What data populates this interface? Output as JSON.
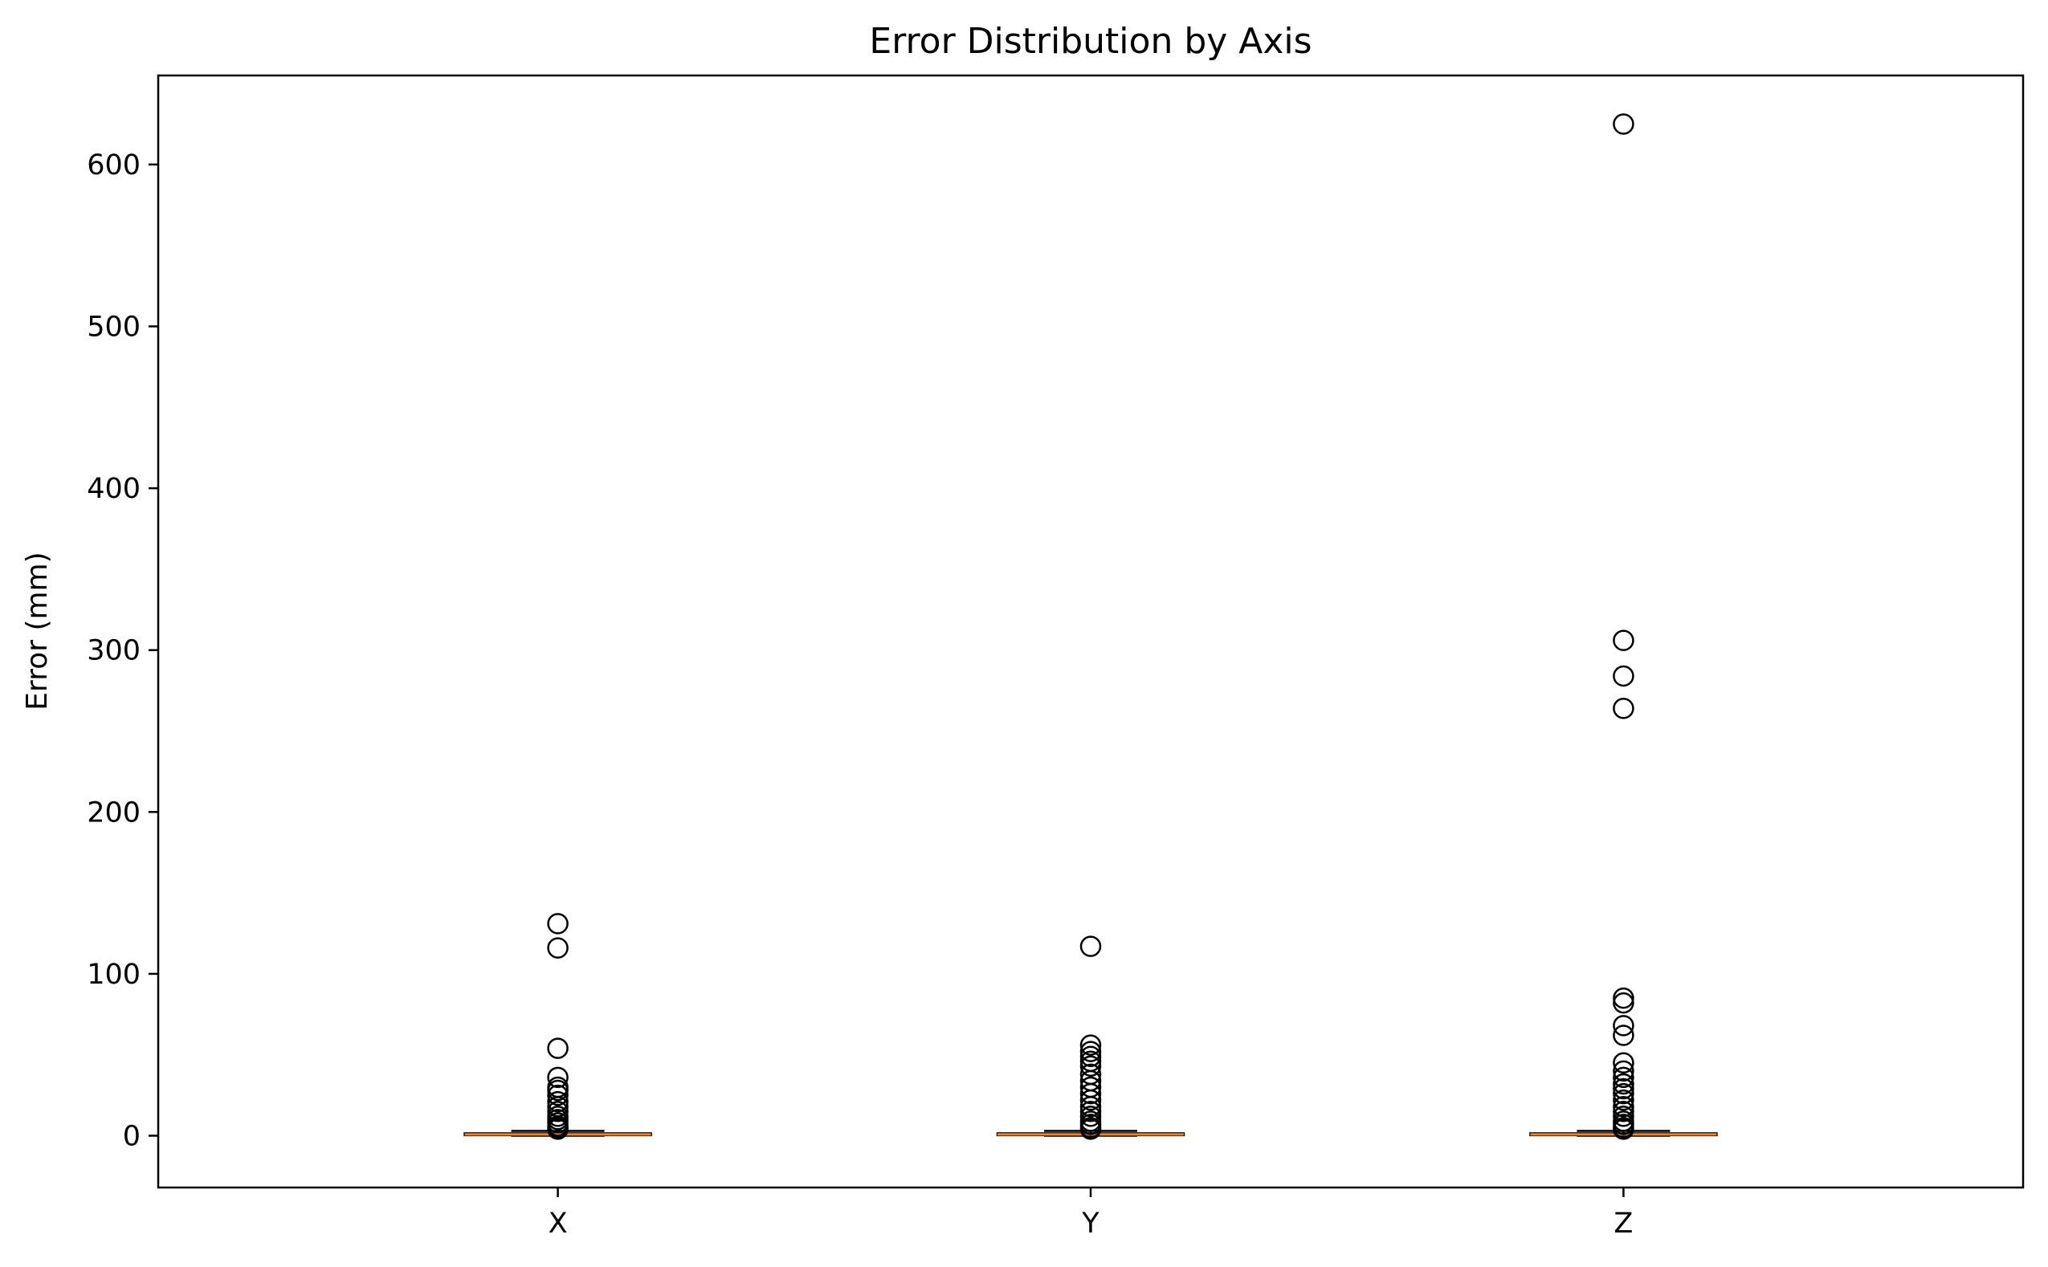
{
  "chart_data": {
    "type": "box",
    "title": "Error Distribution by Axis",
    "xlabel": "",
    "ylabel": "Error (mm)",
    "ylim": [
      -32,
      655
    ],
    "yticks": [
      0,
      100,
      200,
      300,
      400,
      500,
      600
    ],
    "grid": false,
    "categories": [
      "X",
      "Y",
      "Z"
    ],
    "colors": {
      "median": "#ff7f0e",
      "box": "#000000",
      "flier": "#000000"
    },
    "boxes": [
      {
        "name": "X",
        "whisker_low": 0.0,
        "q1": 0.3,
        "median": 0.8,
        "q3": 1.5,
        "whisker_high": 3.0,
        "fliers": [
          131,
          116,
          54,
          36,
          30,
          28,
          25,
          21,
          18,
          15,
          12,
          10,
          8,
          6,
          5,
          4
        ]
      },
      {
        "name": "Y",
        "whisker_low": 0.0,
        "q1": 0.3,
        "median": 0.8,
        "q3": 1.5,
        "whisker_high": 3.0,
        "fliers": [
          117,
          56,
          52,
          49,
          46,
          43,
          38,
          34,
          30,
          26,
          22,
          18,
          15,
          12,
          9,
          7,
          5,
          4
        ]
      },
      {
        "name": "Z",
        "whisker_low": 0.0,
        "q1": 0.3,
        "median": 0.8,
        "q3": 1.5,
        "whisker_high": 3.0,
        "fliers": [
          625,
          306,
          284,
          264,
          85,
          82,
          68,
          62,
          45,
          40,
          36,
          32,
          29,
          26,
          22,
          18,
          15,
          12,
          9,
          7,
          5,
          4
        ]
      }
    ]
  }
}
